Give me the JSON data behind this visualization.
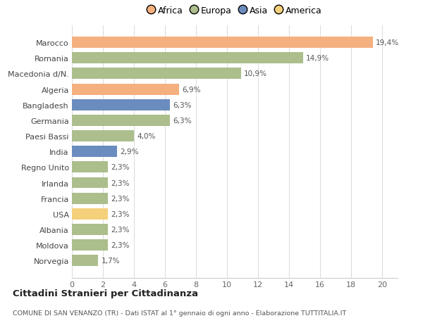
{
  "countries": [
    "Norvegia",
    "Moldova",
    "Albania",
    "USA",
    "Francia",
    "Irlanda",
    "Regno Unito",
    "India",
    "Paesi Bassi",
    "Germania",
    "Bangladesh",
    "Algeria",
    "Macedonia d/N.",
    "Romania",
    "Marocco"
  ],
  "values": [
    1.7,
    2.3,
    2.3,
    2.3,
    2.3,
    2.3,
    2.3,
    2.9,
    4.0,
    6.3,
    6.3,
    6.9,
    10.9,
    14.9,
    19.4
  ],
  "labels": [
    "1,7%",
    "2,3%",
    "2,3%",
    "2,3%",
    "2,3%",
    "2,3%",
    "2,3%",
    "2,9%",
    "4,0%",
    "6,3%",
    "6,3%",
    "6,9%",
    "10,9%",
    "14,9%",
    "19,4%"
  ],
  "continents": [
    "Europa",
    "Europa",
    "Europa",
    "America",
    "Europa",
    "Europa",
    "Europa",
    "Asia",
    "Europa",
    "Europa",
    "Asia",
    "Africa",
    "Europa",
    "Europa",
    "Africa"
  ],
  "colors": {
    "Africa": "#F5B080",
    "Europa": "#ABBE8C",
    "Asia": "#6B8CBE",
    "America": "#F5D07A"
  },
  "legend_order": [
    "Africa",
    "Europa",
    "Asia",
    "America"
  ],
  "legend_colors": [
    "#F5B080",
    "#ABBE8C",
    "#6B8CBE",
    "#F5D07A"
  ],
  "title": "Cittadini Stranieri per Cittadinanza",
  "subtitle": "COMUNE DI SAN VENANZO (TR) - Dati ISTAT al 1° gennaio di ogni anno - Elaborazione TUTTITALIA.IT",
  "xlim": [
    0,
    21
  ],
  "xticks": [
    0,
    2,
    4,
    6,
    8,
    10,
    12,
    14,
    16,
    18,
    20
  ],
  "bg_color": "#ffffff",
  "grid_color": "#dddddd"
}
